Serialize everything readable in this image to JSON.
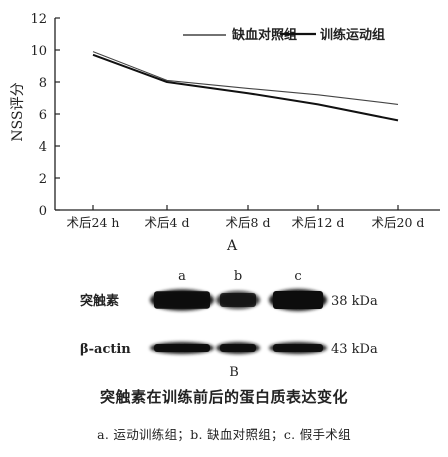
{
  "chart_data": {
    "type": "line",
    "categories": [
      "术后24 h",
      "术后4 d",
      "术后8 d",
      "术后12 d",
      "术后20 d"
    ],
    "ylabel": "NSS评分",
    "ylim": [
      0,
      12
    ],
    "yticks": [
      0,
      2,
      4,
      6,
      8,
      10,
      12
    ],
    "grid": false,
    "legend": "top-right",
    "series": [
      {
        "name": "缺血对照组",
        "values": [
          9.9,
          8.1,
          7.6,
          7.2,
          6.6
        ]
      },
      {
        "name": "训练运动组",
        "values": [
          9.7,
          8.0,
          7.3,
          6.6,
          5.6
        ]
      }
    ],
    "panel_label": "A"
  },
  "blot": {
    "lane_labels": [
      "a",
      "b",
      "c"
    ],
    "rows": [
      {
        "name": "突触素",
        "size": "38 kDa",
        "intensity": [
          0.95,
          0.6,
          1.0
        ]
      },
      {
        "name": "β-actin",
        "size": "43 kDa",
        "intensity": [
          0.9,
          0.85,
          0.85
        ]
      }
    ],
    "panel_label": "B"
  },
  "caption": {
    "title": "突触素在训练前后的蛋白质表达变化",
    "note": "a. 运动训练组；b. 缺血对照组；c. 假手术组"
  }
}
